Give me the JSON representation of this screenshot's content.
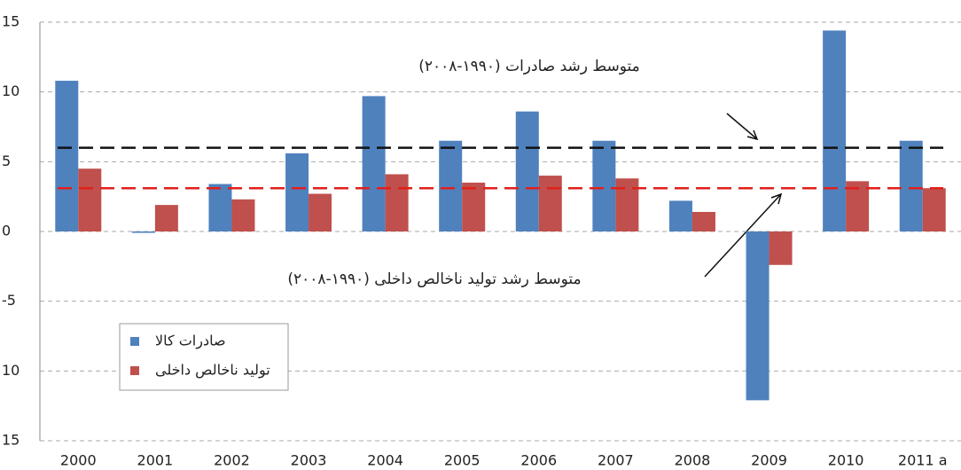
{
  "chart_data": {
    "type": "bar",
    "categories": [
      "2000",
      "2001",
      "2002",
      "2003",
      "2004",
      "2005",
      "2006",
      "2007",
      "2008",
      "2009",
      "2010",
      "2011 a"
    ],
    "series": [
      {
        "name": "صادرات کالا",
        "color": "#4f81bd",
        "values": [
          10.8,
          -0.1,
          3.4,
          5.6,
          9.7,
          6.5,
          8.6,
          6.5,
          2.2,
          -12.1,
          14.4,
          6.5
        ]
      },
      {
        "name": "تولید ناخالص داخلی",
        "color": "#c0504d",
        "values": [
          4.5,
          1.9,
          2.3,
          2.7,
          4.1,
          3.5,
          4.0,
          3.8,
          1.4,
          -2.4,
          3.6,
          3.1
        ]
      }
    ],
    "reference_lines": [
      {
        "value": 6,
        "color": "#111111",
        "label": "متوسط رشد صادرات (۱۹۹۰-۲۰۰۸)"
      },
      {
        "value": 3.1,
        "color": "#e0201b",
        "label": "متوسط رشد تولید ناخالص داخلی (۱۹۹۰-۲۰۰۸)"
      }
    ],
    "ylim": [
      -15,
      15
    ],
    "yticks": [
      {
        "value": -15,
        "label": "15"
      },
      {
        "value": -10,
        "label": "10"
      },
      -5,
      0,
      5,
      10,
      15
    ],
    "grid": true,
    "legend": "lower left"
  }
}
